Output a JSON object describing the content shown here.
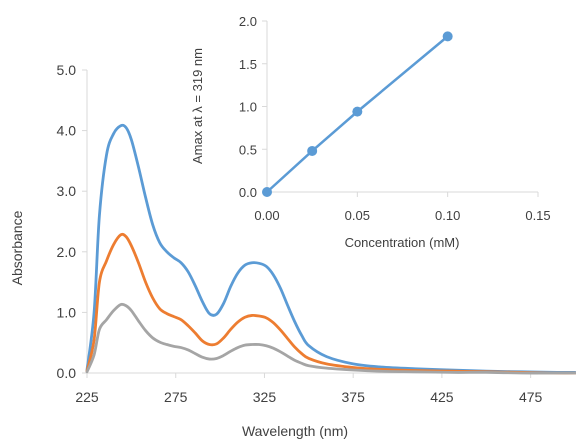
{
  "chart_data": [
    {
      "type": "line",
      "xlabel": "Wavelength (nm)",
      "ylabel": "Absorbance",
      "xlim": [
        225,
        500
      ],
      "ylim": [
        0,
        5
      ],
      "x_ticks": [
        225,
        275,
        325,
        375,
        425,
        475
      ],
      "x_tick_labels": [
        "225",
        "275",
        "325",
        "375",
        "425",
        "475"
      ],
      "y_ticks": [
        0,
        1,
        2,
        3,
        4,
        5
      ],
      "y_tick_labels": [
        "0.0",
        "1.0",
        "2.0",
        "3.0",
        "4.0",
        "5.0"
      ],
      "grid": false,
      "x": [
        225,
        229,
        232,
        236,
        240,
        244,
        247,
        250,
        254,
        258,
        262,
        266,
        270,
        274,
        278,
        282,
        286,
        290,
        294,
        298,
        302,
        306,
        310,
        314,
        318,
        322,
        326,
        330,
        334,
        338,
        342,
        346,
        350,
        360,
        375,
        390,
        410,
        430,
        450,
        470,
        490,
        500
      ],
      "series": [
        {
          "color": "#5B9BD5",
          "values": [
            0.05,
            1.0,
            2.6,
            3.6,
            3.95,
            4.08,
            4.05,
            3.85,
            3.4,
            2.9,
            2.45,
            2.15,
            2.0,
            1.9,
            1.82,
            1.67,
            1.44,
            1.18,
            0.98,
            0.97,
            1.15,
            1.43,
            1.65,
            1.78,
            1.82,
            1.81,
            1.76,
            1.62,
            1.4,
            1.12,
            0.85,
            0.62,
            0.45,
            0.27,
            0.15,
            0.1,
            0.07,
            0.05,
            0.03,
            0.02,
            0.01,
            0.01
          ]
        },
        {
          "color": "#ED7D31",
          "values": [
            0.03,
            0.55,
            1.5,
            1.85,
            2.12,
            2.28,
            2.25,
            2.1,
            1.82,
            1.5,
            1.24,
            1.06,
            0.98,
            0.93,
            0.88,
            0.78,
            0.66,
            0.53,
            0.47,
            0.48,
            0.58,
            0.72,
            0.84,
            0.92,
            0.95,
            0.94,
            0.91,
            0.83,
            0.71,
            0.57,
            0.43,
            0.32,
            0.24,
            0.15,
            0.09,
            0.06,
            0.04,
            0.03,
            0.02,
            0.01,
            0.0,
            0.0
          ]
        },
        {
          "color": "#A5A5A5",
          "values": [
            0.02,
            0.3,
            0.72,
            0.88,
            1.03,
            1.13,
            1.11,
            1.03,
            0.86,
            0.7,
            0.58,
            0.51,
            0.47,
            0.44,
            0.42,
            0.38,
            0.32,
            0.26,
            0.23,
            0.24,
            0.29,
            0.36,
            0.42,
            0.46,
            0.47,
            0.47,
            0.45,
            0.41,
            0.35,
            0.28,
            0.21,
            0.16,
            0.12,
            0.08,
            0.05,
            0.03,
            0.02,
            0.01,
            0.01,
            0.0,
            0.0,
            0.0
          ]
        }
      ]
    },
    {
      "type": "scatter",
      "xlabel": "Concentration (mM)",
      "ylabel": "Amax at λ = 319 nm",
      "xlim": [
        0,
        0.15
      ],
      "ylim": [
        0,
        2.0
      ],
      "x_ticks": [
        0,
        0.05,
        0.1,
        0.15
      ],
      "x_tick_labels": [
        "0.00",
        "0.05",
        "0.10",
        "0.15"
      ],
      "y_ticks": [
        0,
        0.5,
        1.0,
        1.5,
        2.0
      ],
      "y_tick_labels": [
        "0.0",
        "0.5",
        "1.0",
        "1.5",
        "2.0"
      ],
      "grid": false,
      "series": [
        {
          "color": "#5B9BD5",
          "x": [
            0,
            0.025,
            0.05,
            0.1
          ],
          "values": [
            0.0,
            0.48,
            0.94,
            1.82
          ]
        }
      ]
    }
  ]
}
